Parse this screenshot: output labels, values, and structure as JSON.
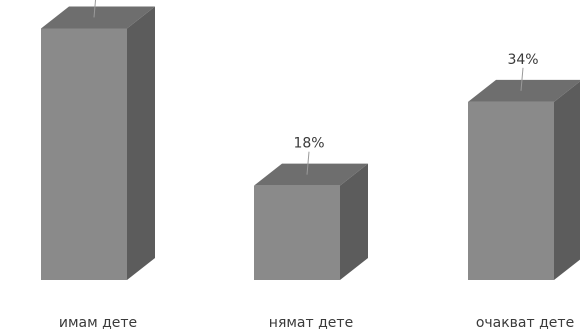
{
  "chart_data": {
    "type": "bar",
    "style": "3d-column",
    "categories": [
      "имам дете",
      "нямат дете",
      "очакват дете"
    ],
    "values": [
      48,
      18,
      34
    ],
    "value_suffix": "%",
    "ylim": [
      0,
      50
    ],
    "grid": false,
    "legend": "none",
    "colors": {
      "front": "#8a8a8a",
      "side": "#5c5c5c",
      "top": "#6e6e6e",
      "text": "#3a3a3a"
    }
  }
}
